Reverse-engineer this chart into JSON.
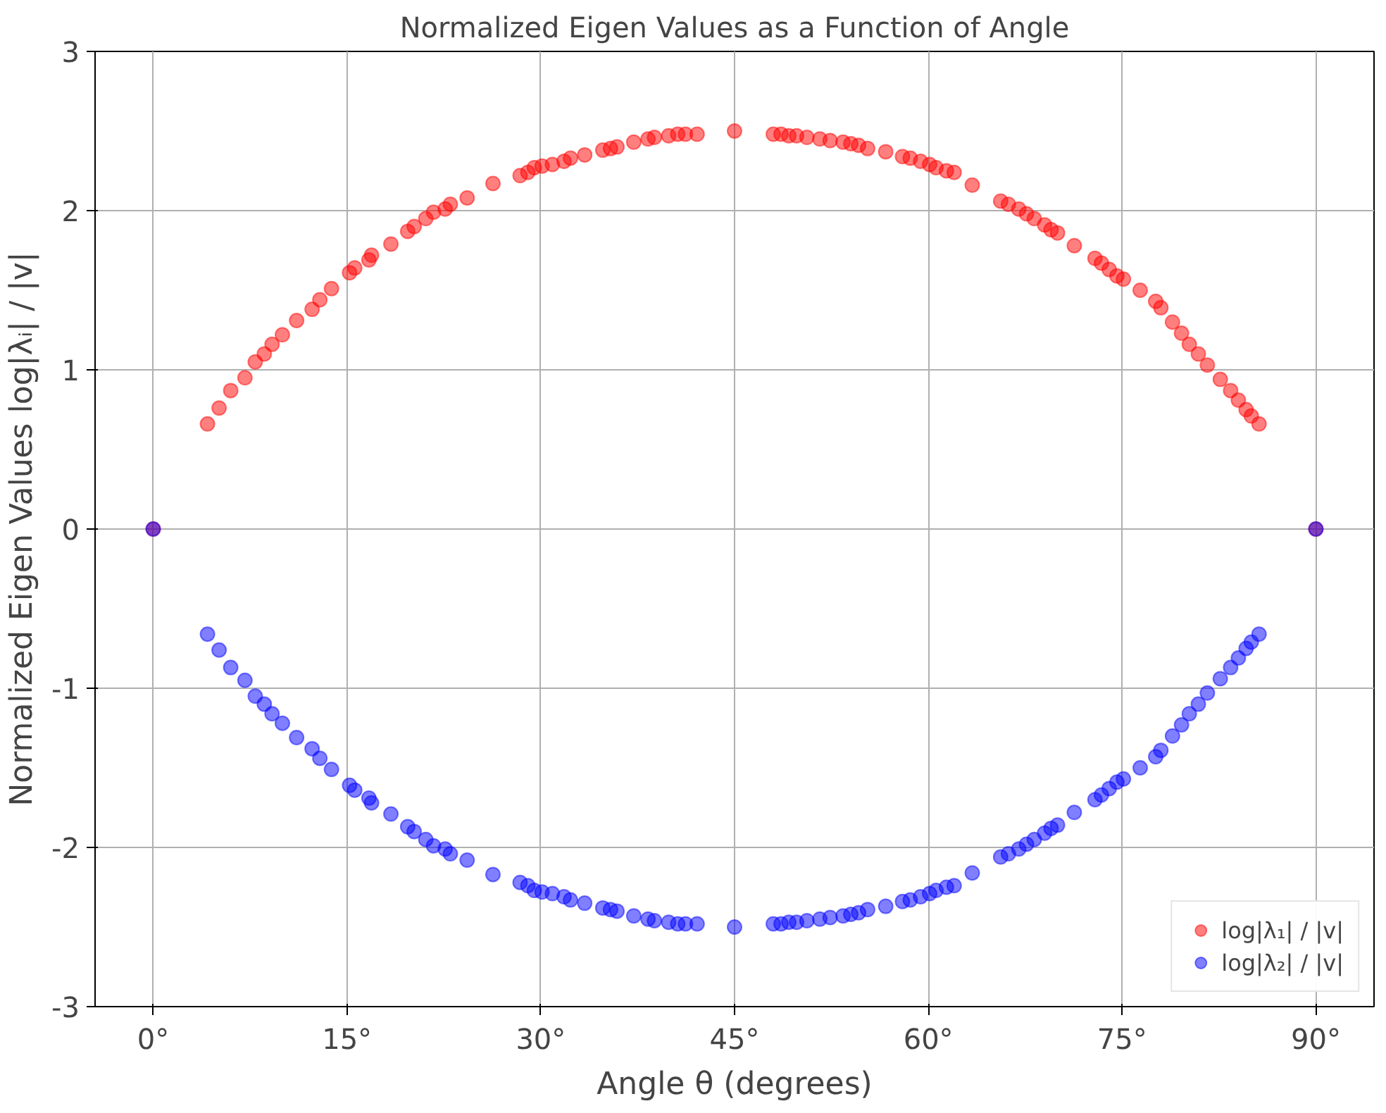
{
  "chart_data": {
    "type": "scatter",
    "title": "Normalized Eigen Values as a Function of Angle",
    "xlabel": "Angle θ (degrees)",
    "ylabel": "Normalized Eigen Values log|λᵢ| / |v|",
    "xlim": [
      -4.5,
      94.5
    ],
    "ylim": [
      -3,
      3
    ],
    "xticks": [
      {
        "value": 0,
        "label": "0°"
      },
      {
        "value": 15,
        "label": "15°"
      },
      {
        "value": 30,
        "label": "30°"
      },
      {
        "value": 45,
        "label": "45°"
      },
      {
        "value": 60,
        "label": "60°"
      },
      {
        "value": 75,
        "label": "75°"
      },
      {
        "value": 90,
        "label": "90°"
      }
    ],
    "yticks": [
      -3,
      -2,
      -1,
      0,
      1,
      2,
      3
    ],
    "grid": true,
    "legend": "bottom right",
    "marker": "circle",
    "x": [
      0,
      4.2,
      5.1,
      6.0,
      7.1,
      7.9,
      8.6,
      9.2,
      10.0,
      11.1,
      12.3,
      12.9,
      13.8,
      15.2,
      15.6,
      16.7,
      16.9,
      18.4,
      19.7,
      20.2,
      21.1,
      21.7,
      22.6,
      23.0,
      24.3,
      26.3,
      28.4,
      29.0,
      29.5,
      30.1,
      30.9,
      31.8,
      32.3,
      33.4,
      34.8,
      35.4,
      35.9,
      37.2,
      38.3,
      38.8,
      39.9,
      40.6,
      41.2,
      41.6,
      42.1,
      45.0,
      48.0,
      48.6,
      49.2,
      49.8,
      50.6,
      51.6,
      52.4,
      53.4,
      54.0,
      54.6,
      55.3,
      56.7,
      58.0,
      58.6,
      59.4,
      60.1,
      60.6,
      61.4,
      62.0,
      63.4,
      65.6,
      66.2,
      67.0,
      67.6,
      68.2,
      69.0,
      69.5,
      70.0,
      71.3,
      72.9,
      73.4,
      74.0,
      74.6,
      75.1,
      76.4,
      77.6,
      78.0,
      78.9,
      79.6,
      80.2,
      80.9,
      81.6,
      82.6,
      83.4,
      84.0,
      84.6,
      85.0,
      85.6,
      90
    ],
    "series": [
      {
        "name": "log|λ₁| / |v|",
        "color": "#ff0000",
        "values": [
          0,
          0.66,
          0.76,
          0.87,
          0.95,
          1.05,
          1.1,
          1.16,
          1.22,
          1.31,
          1.38,
          1.44,
          1.51,
          1.61,
          1.64,
          1.69,
          1.72,
          1.79,
          1.87,
          1.9,
          1.95,
          1.99,
          2.01,
          2.04,
          2.08,
          2.17,
          2.22,
          2.24,
          2.27,
          2.28,
          2.29,
          2.31,
          2.33,
          2.35,
          2.38,
          2.39,
          2.4,
          2.43,
          2.45,
          2.46,
          2.47,
          2.48,
          2.48,
          null,
          2.48,
          2.5,
          2.48,
          2.48,
          2.47,
          2.47,
          2.46,
          2.45,
          2.44,
          2.43,
          2.42,
          2.41,
          2.39,
          2.37,
          2.34,
          2.33,
          2.31,
          2.29,
          2.27,
          2.25,
          2.24,
          2.16,
          2.06,
          2.04,
          2.01,
          1.98,
          1.95,
          1.91,
          1.88,
          1.86,
          1.78,
          1.7,
          1.67,
          1.63,
          1.59,
          1.57,
          1.5,
          1.43,
          1.39,
          1.3,
          1.23,
          1.16,
          1.1,
          1.03,
          0.94,
          0.87,
          0.81,
          0.75,
          0.71,
          0.66,
          0
        ]
      },
      {
        "name": "log|λ₂| / |v|",
        "color": "#0000ff",
        "values": [
          0,
          -0.66,
          -0.76,
          -0.87,
          -0.95,
          -1.05,
          -1.1,
          -1.16,
          -1.22,
          -1.31,
          -1.38,
          -1.44,
          -1.51,
          -1.61,
          -1.64,
          -1.69,
          -1.72,
          -1.79,
          -1.87,
          -1.9,
          -1.95,
          -1.99,
          -2.01,
          -2.04,
          -2.08,
          -2.17,
          -2.22,
          -2.24,
          -2.27,
          -2.28,
          -2.29,
          -2.31,
          -2.33,
          -2.35,
          -2.38,
          -2.39,
          -2.4,
          -2.43,
          -2.45,
          -2.46,
          -2.47,
          -2.48,
          -2.48,
          null,
          -2.48,
          -2.5,
          -2.48,
          -2.48,
          -2.47,
          -2.47,
          -2.46,
          -2.45,
          -2.44,
          -2.43,
          -2.42,
          -2.41,
          -2.39,
          -2.37,
          -2.34,
          -2.33,
          -2.31,
          -2.29,
          -2.27,
          -2.25,
          -2.24,
          -2.16,
          -2.06,
          -2.04,
          -2.01,
          -1.98,
          -1.95,
          -1.91,
          -1.88,
          -1.86,
          -1.78,
          -1.7,
          -1.67,
          -1.63,
          -1.59,
          -1.57,
          -1.5,
          -1.43,
          -1.39,
          -1.3,
          -1.23,
          -1.16,
          -1.1,
          -1.03,
          -0.94,
          -0.87,
          -0.81,
          -0.75,
          -0.71,
          -0.66,
          0
        ]
      }
    ]
  }
}
